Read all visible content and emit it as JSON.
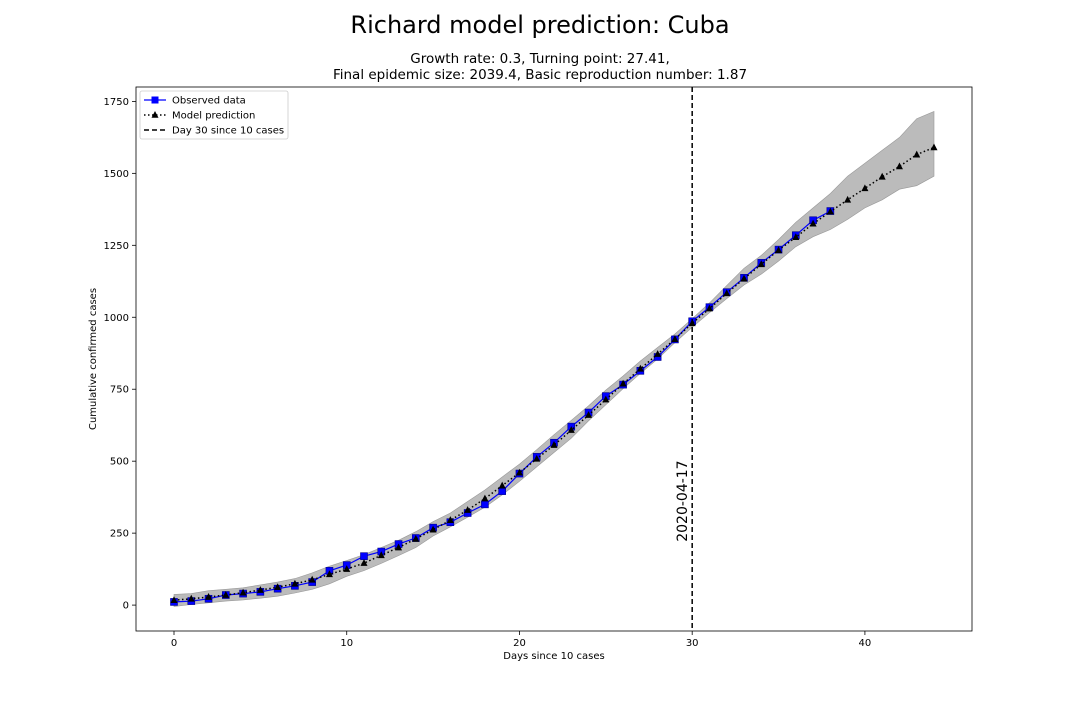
{
  "title": "Richard model prediction: Cuba",
  "subtitle": {
    "line1": "Growth rate: 0.3, Turning point: 27.41,",
    "line2": "Final epidemic size: 2039.4, Basic reproduction number: 1.87"
  },
  "chart_data": {
    "type": "line",
    "xlabel": "Days since 10 cases",
    "ylabel": "Cumulative confirmed cases",
    "xlim": [
      -2.2,
      46.2
    ],
    "ylim": [
      -90,
      1800
    ],
    "xticks": [
      0,
      10,
      20,
      30,
      40
    ],
    "yticks": [
      0,
      250,
      500,
      750,
      1000,
      1250,
      1500,
      1750
    ],
    "grid": false,
    "legend_placement": "top-left",
    "series": [
      {
        "name": "Observed data",
        "color": "#0000ff",
        "marker": "square",
        "line": "solid",
        "x": [
          0,
          1,
          2,
          3,
          4,
          5,
          6,
          7,
          8,
          9,
          10,
          11,
          12,
          13,
          14,
          15,
          16,
          17,
          18,
          19,
          20,
          21,
          22,
          23,
          24,
          25,
          26,
          27,
          28,
          29,
          30,
          31,
          32,
          33,
          34,
          35,
          36,
          37,
          38
        ],
        "y": [
          11,
          14,
          22,
          35,
          40,
          46,
          57,
          67,
          80,
          119,
          139,
          170,
          186,
          212,
          233,
          269,
          288,
          320,
          350,
          396,
          457,
          515,
          564,
          620,
          669,
          726,
          766,
          814,
          862,
          923,
          986,
          1035,
          1087,
          1137,
          1189,
          1235,
          1285,
          1337,
          1369
        ]
      },
      {
        "name": "Model prediction",
        "color": "#000000",
        "marker": "triangle",
        "line": "dotted",
        "x": [
          0,
          1,
          2,
          3,
          4,
          5,
          6,
          7,
          8,
          9,
          10,
          11,
          12,
          13,
          14,
          15,
          16,
          17,
          18,
          19,
          20,
          21,
          22,
          23,
          24,
          25,
          26,
          27,
          28,
          29,
          30,
          31,
          32,
          33,
          34,
          35,
          36,
          37,
          38,
          39,
          40,
          41,
          42,
          43,
          44
        ],
        "y": [
          17,
          22,
          28,
          35,
          43,
          52,
          62,
          74,
          88,
          107,
          125,
          146,
          173,
          200,
          230,
          262,
          295,
          330,
          370,
          415,
          460,
          508,
          556,
          608,
          660,
          714,
          769,
          821,
          872,
          924,
          979,
          1030,
          1083,
          1134,
          1184,
          1233,
          1278,
          1325,
          1367,
          1408,
          1448,
          1488,
          1524,
          1565,
          1590
        ]
      }
    ],
    "confidence_band": {
      "color": "#bbbbbb",
      "x": [
        0,
        1,
        2,
        3,
        4,
        5,
        6,
        7,
        8,
        9,
        10,
        11,
        12,
        13,
        14,
        15,
        16,
        17,
        18,
        19,
        20,
        21,
        22,
        23,
        24,
        25,
        26,
        27,
        28,
        29,
        30,
        31,
        32,
        33,
        34,
        35,
        36,
        37,
        38,
        39,
        40,
        41,
        42,
        43,
        44
      ],
      "lower": [
        -5,
        2,
        8,
        14,
        18,
        24,
        31,
        42,
        55,
        74,
        100,
        120,
        145,
        172,
        200,
        240,
        272,
        305,
        340,
        383,
        430,
        480,
        530,
        580,
        640,
        696,
        752,
        805,
        855,
        912,
        965,
        1016,
        1065,
        1112,
        1150,
        1195,
        1245,
        1280,
        1305,
        1340,
        1380,
        1408,
        1445,
        1457,
        1490
      ],
      "upper": [
        37,
        40,
        50,
        55,
        60,
        70,
        80,
        92,
        112,
        135,
        155,
        175,
        200,
        225,
        255,
        290,
        320,
        360,
        400,
        445,
        490,
        540,
        592,
        642,
        692,
        747,
        796,
        848,
        895,
        942,
        995,
        1050,
        1110,
        1170,
        1215,
        1270,
        1330,
        1380,
        1430,
        1490,
        1535,
        1580,
        1625,
        1690,
        1715
      ]
    },
    "vline": {
      "x": 30,
      "label": "Day 30 since 10 cases",
      "style": "dashed",
      "annotation": "2020-04-17"
    }
  }
}
